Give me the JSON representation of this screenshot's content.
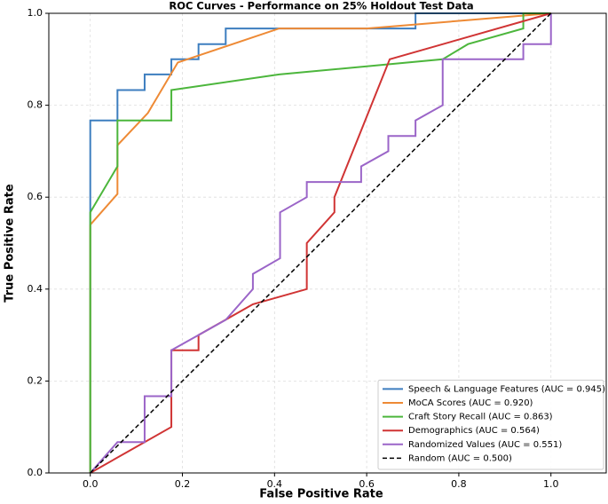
{
  "chart_data": {
    "type": "line",
    "title": "ROC Curves - Performance on 25% Holdout Test Data",
    "x_label": "False Positive Rate",
    "y_label": "True Positive Rate",
    "xlim": [
      -0.09,
      1.12
    ],
    "ylim": [
      0,
      1
    ],
    "xticks": [
      {
        "value": 0,
        "label": "0.0"
      },
      {
        "value": 0.2,
        "label": "0.2"
      },
      {
        "value": 0.4,
        "label": "0.4"
      },
      {
        "value": 0.6,
        "label": "0.6"
      },
      {
        "value": 0.8,
        "label": "0.8"
      },
      {
        "value": 1,
        "label": "1.0"
      }
    ],
    "yticks": [
      {
        "value": 0,
        "label": "0.0"
      },
      {
        "value": 0.2,
        "label": "0.2"
      },
      {
        "value": 0.4,
        "label": "0.4"
      },
      {
        "value": 0.6,
        "label": "0.6"
      },
      {
        "value": 0.8,
        "label": "0.8"
      },
      {
        "value": 1,
        "label": "1.0"
      }
    ],
    "grid": true,
    "legend": "lower right",
    "series": [
      {
        "name": "Speech & Language Features (AUC = 0.945)",
        "color": "#3d7ebf",
        "linestyle": "solid",
        "x": [
          0,
          0,
          0.059,
          0.059,
          0.118,
          0.118,
          0.176,
          0.176,
          0.235,
          0.235,
          0.294,
          0.294,
          0.706,
          0.706,
          1.0
        ],
        "values": [
          0,
          0.767,
          0.767,
          0.833,
          0.833,
          0.867,
          0.867,
          0.9,
          0.9,
          0.933,
          0.933,
          0.967,
          0.967,
          1.0,
          1.0
        ]
      },
      {
        "name": "MoCA Scores (AUC = 0.920)",
        "color": "#ee8a35",
        "linestyle": "solid",
        "x": [
          0,
          0,
          0.059,
          0.059,
          0.125,
          0.19,
          0.41,
          0.6,
          1.0
        ],
        "values": [
          0,
          0.54,
          0.607,
          0.713,
          0.783,
          0.893,
          0.967,
          0.967,
          1.0
        ]
      },
      {
        "name": "Craft Story Recall (AUC = 0.863)",
        "color": "#4cb63c",
        "linestyle": "solid",
        "x": [
          0,
          0,
          0.059,
          0.059,
          0.176,
          0.176,
          0.41,
          0.765,
          0.82,
          0.94,
          0.94,
          1.0
        ],
        "values": [
          0,
          0.567,
          0.667,
          0.767,
          0.767,
          0.833,
          0.867,
          0.9,
          0.933,
          0.967,
          1.0,
          1.0
        ]
      },
      {
        "name": "Demographics (AUC = 0.564)",
        "color": "#d03434",
        "linestyle": "solid",
        "x": [
          0,
          0.176,
          0.176,
          0.235,
          0.235,
          0.353,
          0.47,
          0.47,
          0.53,
          0.53,
          0.65,
          1.0
        ],
        "values": [
          0,
          0.1,
          0.267,
          0.267,
          0.3,
          0.367,
          0.4,
          0.5,
          0.567,
          0.6,
          0.9,
          1.0
        ]
      },
      {
        "name": "Randomized Values (AUC = 0.551)",
        "color": "#9b65c8",
        "linestyle": "solid",
        "x": [
          0,
          0.059,
          0.118,
          0.118,
          0.176,
          0.176,
          0.294,
          0.353,
          0.353,
          0.412,
          0.412,
          0.47,
          0.47,
          0.588,
          0.588,
          0.647,
          0.647,
          0.706,
          0.706,
          0.765,
          0.765,
          0.94,
          0.94,
          1.0,
          1.0
        ],
        "values": [
          0,
          0.067,
          0.067,
          0.167,
          0.167,
          0.267,
          0.333,
          0.4,
          0.433,
          0.467,
          0.567,
          0.6,
          0.633,
          0.633,
          0.667,
          0.7,
          0.733,
          0.733,
          0.767,
          0.8,
          0.9,
          0.9,
          0.933,
          0.933,
          1.0
        ]
      },
      {
        "name": "Random (AUC = 0.500)",
        "color": "#000000",
        "linestyle": "dashed",
        "x": [
          0,
          1
        ],
        "values": [
          0,
          1
        ]
      }
    ]
  }
}
